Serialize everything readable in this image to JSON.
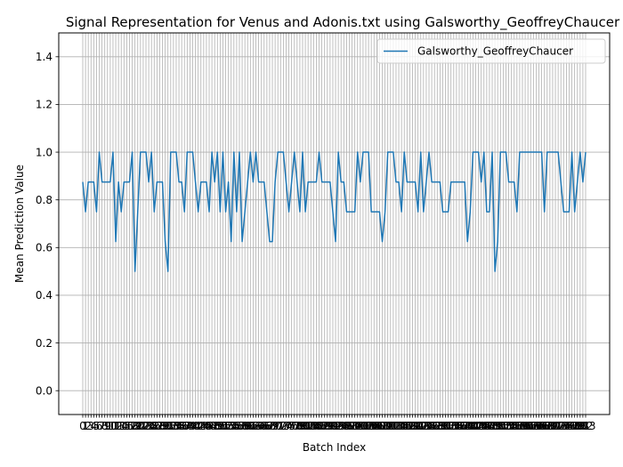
{
  "chart_data": {
    "type": "line",
    "title": "Signal Representation for Venus and Adonis.txt using Galsworthy_GeoffreyChaucer",
    "xlabel": "Batch Index",
    "ylabel": "Mean Prediction Value",
    "ylim": [
      -0.1,
      1.5
    ],
    "yticks": [
      0.0,
      0.2,
      0.4,
      0.6,
      0.8,
      1.0,
      1.2,
      1.4
    ],
    "ytick_labels": [
      "0.0",
      "0.2",
      "0.4",
      "0.6",
      "0.8",
      "1.0",
      "1.2",
      "1.4"
    ],
    "grid": true,
    "legend_position": "top-right",
    "line_color": "#1f77b4",
    "series": [
      {
        "name": "Galsworthy_GeoffreyChaucer",
        "values": [
          0.875,
          0.75,
          0.875,
          0.875,
          0.875,
          0.75,
          1.0,
          0.875,
          0.875,
          0.875,
          0.875,
          1.0,
          0.625,
          0.875,
          0.75,
          0.875,
          0.875,
          0.875,
          1.0,
          0.5,
          0.75,
          1.0,
          1.0,
          1.0,
          0.875,
          1.0,
          0.75,
          0.875,
          0.875,
          0.875,
          0.625,
          0.5,
          1.0,
          1.0,
          1.0,
          0.875,
          0.875,
          0.75,
          1.0,
          1.0,
          1.0,
          0.875,
          0.75,
          0.875,
          0.875,
          0.875,
          0.75,
          1.0,
          0.875,
          1.0,
          0.75,
          1.0,
          0.75,
          0.875,
          0.625,
          1.0,
          0.75,
          1.0,
          0.625,
          0.75,
          0.875,
          1.0,
          0.875,
          1.0,
          0.875,
          0.875,
          0.875,
          0.75,
          0.625,
          0.625,
          0.875,
          1.0,
          1.0,
          1.0,
          0.875,
          0.75,
          0.875,
          1.0,
          0.875,
          0.75,
          1.0,
          0.75,
          0.875,
          0.875,
          0.875,
          0.875,
          1.0,
          0.875,
          0.875,
          0.875,
          0.875,
          0.75,
          0.625,
          1.0,
          0.875,
          0.875,
          0.75,
          0.75,
          0.75,
          0.75,
          1.0,
          0.875,
          1.0,
          1.0,
          1.0,
          0.75,
          0.75,
          0.75,
          0.75,
          0.625,
          0.75,
          1.0,
          1.0,
          1.0,
          0.875,
          0.875,
          0.75,
          1.0,
          0.875,
          0.875,
          0.875,
          0.875,
          0.75,
          1.0,
          0.75,
          0.875,
          1.0,
          0.875,
          0.875,
          0.875,
          0.875,
          0.75,
          0.75,
          0.75,
          0.875,
          0.875,
          0.875,
          0.875,
          0.875,
          0.875,
          0.625,
          0.75,
          1.0,
          1.0,
          1.0,
          0.875,
          1.0,
          0.75,
          0.75,
          1.0,
          0.5,
          0.625,
          1.0,
          1.0,
          1.0,
          0.875,
          0.875,
          0.875,
          0.75,
          1.0,
          1.0,
          1.0,
          1.0,
          1.0,
          1.0,
          1.0,
          1.0,
          1.0,
          0.75,
          1.0,
          1.0,
          1.0,
          1.0,
          1.0,
          0.875,
          0.75,
          0.75,
          0.75,
          1.0,
          0.75,
          0.875,
          1.0,
          0.875,
          1.0
        ]
      }
    ]
  }
}
